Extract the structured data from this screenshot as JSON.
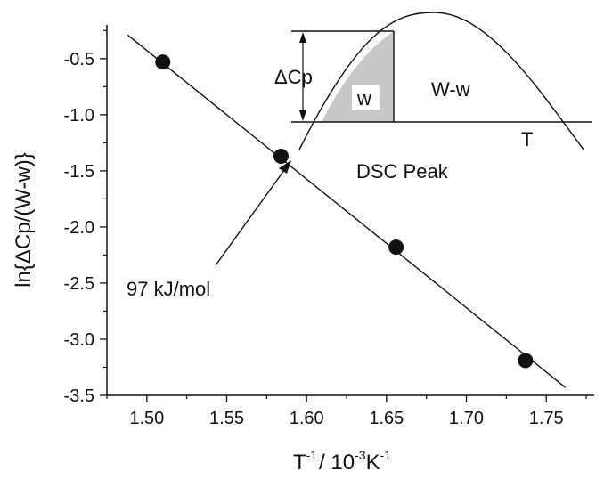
{
  "chart_data": {
    "type": "scatter",
    "xlabel_base": "T",
    "xlabel_sup1": "-1",
    "xlabel_rest": "/ 10",
    "xlabel_sup2": "-3",
    "xlabel_unit": "K",
    "xlabel_sup3": "-1",
    "ylabel": "ln{ΔCp/(W-w)}",
    "xlim": [
      1.475,
      1.78
    ],
    "ylim": [
      -3.5,
      -0.2
    ],
    "x_ticks": [
      1.5,
      1.55,
      1.6,
      1.65,
      1.7,
      1.75
    ],
    "x_tick_labels": [
      "1.50",
      "1.55",
      "1.60",
      "1.65",
      "1.70",
      "1.75"
    ],
    "y_ticks": [
      -0.5,
      -1.0,
      -1.5,
      -2.0,
      -2.5,
      -3.0,
      -3.5
    ],
    "y_tick_labels": [
      "-0.5",
      "-1.0",
      "-1.5",
      "-2.0",
      "-2.5",
      "-3.0",
      "-3.5"
    ],
    "points": [
      {
        "x": 1.51,
        "y": -0.53
      },
      {
        "x": 1.584,
        "y": -1.37
      },
      {
        "x": 1.656,
        "y": -2.18
      },
      {
        "x": 1.737,
        "y": -3.19
      }
    ],
    "fit_line": {
      "x": [
        1.488,
        1.762
      ],
      "y": [
        -0.29,
        -3.43
      ]
    },
    "annotation": {
      "text": "97 kJ/mol"
    },
    "inset": {
      "title": "DSC Peak",
      "delta_label": "ΔCp",
      "area_small": "w",
      "area_large": "W-w",
      "t_label": "T"
    },
    "grid": false,
    "colors": {
      "line": "#111111",
      "marker": "#111111",
      "shade": "#c8c8c8"
    }
  }
}
